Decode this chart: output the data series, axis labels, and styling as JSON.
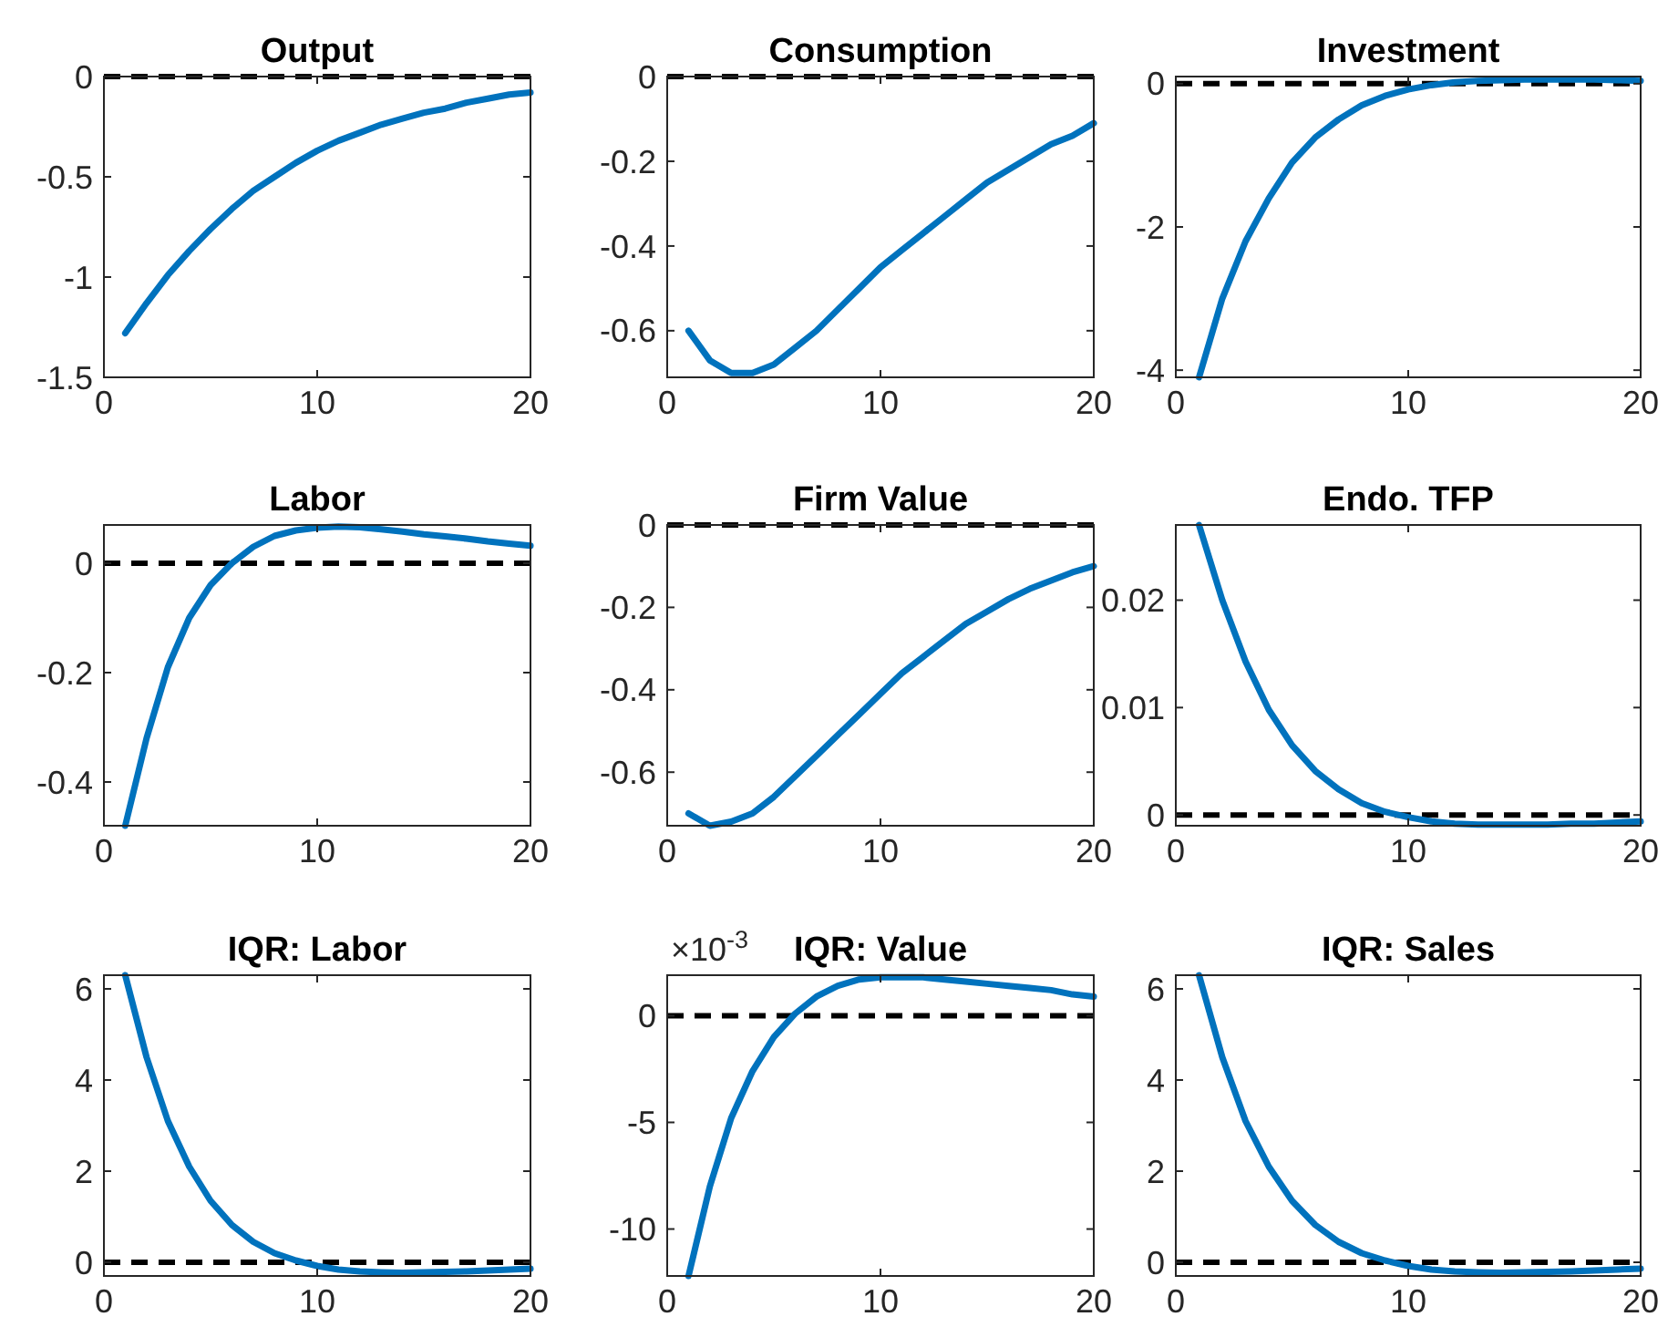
{
  "chart_data": [
    {
      "type": "line",
      "title": "Output",
      "x": [
        1,
        2,
        3,
        4,
        5,
        6,
        7,
        8,
        9,
        10,
        11,
        12,
        13,
        14,
        15,
        16,
        17,
        18,
        19,
        20
      ],
      "xlim": [
        0,
        20
      ],
      "xticks": [
        0,
        10,
        20
      ],
      "ylim": [
        -1.5,
        0
      ],
      "yticks": [
        -1.5,
        -1,
        -0.5,
        0
      ],
      "series": [
        {
          "color": "#0072bd",
          "values": [
            -1.28,
            -1.13,
            -0.99,
            -0.87,
            -0.76,
            -0.66,
            -0.57,
            -0.5,
            -0.43,
            -0.37,
            -0.32,
            -0.28,
            -0.24,
            -0.21,
            -0.18,
            -0.16,
            -0.13,
            -0.11,
            -0.09,
            -0.08
          ]
        }
      ],
      "ref_lines": [
        {
          "axis": "y",
          "value": 0,
          "color": "#000000",
          "line_style": "dashed"
        }
      ]
    },
    {
      "type": "line",
      "title": "Consumption",
      "x": [
        1,
        2,
        3,
        4,
        5,
        6,
        7,
        8,
        9,
        10,
        11,
        12,
        13,
        14,
        15,
        16,
        17,
        18,
        19,
        20
      ],
      "xlim": [
        0,
        20
      ],
      "xticks": [
        0,
        10,
        20
      ],
      "ylim": [
        -0.71,
        0
      ],
      "yticks": [
        -0.6,
        -0.4,
        -0.2,
        0
      ],
      "series": [
        {
          "color": "#0072bd",
          "values": [
            -0.6,
            -0.67,
            -0.7,
            -0.7,
            -0.68,
            -0.64,
            -0.6,
            -0.55,
            -0.5,
            -0.45,
            -0.41,
            -0.37,
            -0.33,
            -0.29,
            -0.25,
            -0.22,
            -0.19,
            -0.16,
            -0.14,
            -0.11
          ]
        }
      ],
      "ref_lines": [
        {
          "axis": "y",
          "value": 0,
          "color": "#000000",
          "line_style": "dashed"
        }
      ]
    },
    {
      "type": "line",
      "title": "Investment",
      "x": [
        1,
        2,
        3,
        4,
        5,
        6,
        7,
        8,
        9,
        10,
        11,
        12,
        13,
        14,
        15,
        16,
        17,
        18,
        19,
        20
      ],
      "xlim": [
        0,
        20
      ],
      "xticks": [
        0,
        10,
        20
      ],
      "ylim": [
        -4.1,
        0.1
      ],
      "yticks": [
        -4,
        -2,
        0
      ],
      "series": [
        {
          "color": "#0072bd",
          "values": [
            -4.1,
            -3.0,
            -2.2,
            -1.6,
            -1.1,
            -0.75,
            -0.5,
            -0.3,
            -0.17,
            -0.08,
            -0.02,
            0.02,
            0.04,
            0.05,
            0.06,
            0.06,
            0.06,
            0.06,
            0.05,
            0.04
          ]
        }
      ],
      "ref_lines": [
        {
          "axis": "y",
          "value": 0,
          "color": "#000000",
          "line_style": "dashed"
        }
      ]
    },
    {
      "type": "line",
      "title": "Labor",
      "x": [
        1,
        2,
        3,
        4,
        5,
        6,
        7,
        8,
        9,
        10,
        11,
        12,
        13,
        14,
        15,
        16,
        17,
        18,
        19,
        20
      ],
      "xlim": [
        0,
        20
      ],
      "xticks": [
        0,
        10,
        20
      ],
      "ylim": [
        -0.48,
        0.07
      ],
      "yticks": [
        -0.4,
        -0.2,
        0
      ],
      "series": [
        {
          "color": "#0072bd",
          "values": [
            -0.48,
            -0.32,
            -0.19,
            -0.1,
            -0.04,
            0.0,
            0.03,
            0.05,
            0.06,
            0.065,
            0.067,
            0.066,
            0.062,
            0.058,
            0.053,
            0.049,
            0.045,
            0.04,
            0.036,
            0.032
          ]
        }
      ],
      "ref_lines": [
        {
          "axis": "y",
          "value": 0,
          "color": "#000000",
          "line_style": "dashed"
        }
      ]
    },
    {
      "type": "line",
      "title": "Firm Value",
      "x": [
        1,
        2,
        3,
        4,
        5,
        6,
        7,
        8,
        9,
        10,
        11,
        12,
        13,
        14,
        15,
        16,
        17,
        18,
        19,
        20
      ],
      "xlim": [
        0,
        20
      ],
      "xticks": [
        0,
        10,
        20
      ],
      "ylim": [
        -0.73,
        0
      ],
      "yticks": [
        -0.6,
        -0.4,
        -0.2,
        0
      ],
      "series": [
        {
          "color": "#0072bd",
          "values": [
            -0.7,
            -0.73,
            -0.72,
            -0.7,
            -0.66,
            -0.61,
            -0.56,
            -0.51,
            -0.46,
            -0.41,
            -0.36,
            -0.32,
            -0.28,
            -0.24,
            -0.21,
            -0.18,
            -0.155,
            -0.135,
            -0.115,
            -0.1
          ]
        }
      ],
      "ref_lines": [
        {
          "axis": "y",
          "value": 0,
          "color": "#000000",
          "line_style": "dashed"
        }
      ]
    },
    {
      "type": "line",
      "title": "Endo. TFP",
      "x": [
        1,
        2,
        3,
        4,
        5,
        6,
        7,
        8,
        9,
        10,
        11,
        12,
        13,
        14,
        15,
        16,
        17,
        18,
        19,
        20
      ],
      "xlim": [
        0,
        20
      ],
      "xticks": [
        0,
        10,
        20
      ],
      "ylim": [
        -0.001,
        0.027
      ],
      "yticks": [
        0,
        0.01,
        0.02
      ],
      "series": [
        {
          "color": "#0072bd",
          "values": [
            0.027,
            0.02,
            0.0143,
            0.0098,
            0.0065,
            0.0041,
            0.0024,
            0.0011,
            0.0003,
            -0.0002,
            -0.0006,
            -0.0008,
            -0.0009,
            -0.0009,
            -0.0009,
            -0.0009,
            -0.0008,
            -0.0008,
            -0.0007,
            -0.0006
          ]
        }
      ],
      "ref_lines": [
        {
          "axis": "y",
          "value": 0,
          "color": "#000000",
          "line_style": "dashed"
        }
      ]
    },
    {
      "type": "line",
      "title": "IQR: Labor",
      "x": [
        1,
        2,
        3,
        4,
        5,
        6,
        7,
        8,
        9,
        10,
        11,
        12,
        13,
        14,
        15,
        16,
        17,
        18,
        19,
        20
      ],
      "xlim": [
        0,
        20
      ],
      "xticks": [
        0,
        10,
        20
      ],
      "ylim": [
        -0.3,
        6.3
      ],
      "yticks": [
        0,
        2,
        4,
        6
      ],
      "series": [
        {
          "color": "#0072bd",
          "values": [
            6.3,
            4.5,
            3.1,
            2.1,
            1.35,
            0.82,
            0.45,
            0.2,
            0.04,
            -0.08,
            -0.16,
            -0.2,
            -0.22,
            -0.23,
            -0.22,
            -0.21,
            -0.2,
            -0.18,
            -0.16,
            -0.14
          ]
        }
      ],
      "ref_lines": [
        {
          "axis": "y",
          "value": 0,
          "color": "#000000",
          "line_style": "dashed"
        }
      ]
    },
    {
      "type": "line",
      "title": "IQR: Value",
      "x": [
        1,
        2,
        3,
        4,
        5,
        6,
        7,
        8,
        9,
        10,
        11,
        12,
        13,
        14,
        15,
        16,
        17,
        18,
        19,
        20
      ],
      "xlim": [
        0,
        20
      ],
      "xticks": [
        0,
        10,
        20
      ],
      "ylim": [
        -12.2,
        1.9
      ],
      "yticks": [
        -10,
        -5,
        0
      ],
      "series": [
        {
          "color": "#0072bd",
          "values": [
            -12.2,
            -8,
            -4.8,
            -2.6,
            -1,
            0.1,
            0.9,
            1.4,
            1.7,
            1.8,
            1.8,
            1.8,
            1.7,
            1.6,
            1.5,
            1.4,
            1.3,
            1.2,
            1,
            0.9
          ]
        }
      ],
      "ref_lines": [
        {
          "axis": "y",
          "value": 0,
          "color": "#000000",
          "line_style": "dashed"
        }
      ],
      "annotations": [
        "×10$^{-3}$"
      ]
    },
    {
      "type": "line",
      "title": "IQR: Sales",
      "x": [
        1,
        2,
        3,
        4,
        5,
        6,
        7,
        8,
        9,
        10,
        11,
        12,
        13,
        14,
        15,
        16,
        17,
        18,
        19,
        20
      ],
      "xlim": [
        0,
        20
      ],
      "xticks": [
        0,
        10,
        20
      ],
      "ylim": [
        -0.3,
        6.3
      ],
      "yticks": [
        0,
        2,
        4,
        6
      ],
      "series": [
        {
          "color": "#0072bd",
          "values": [
            6.3,
            4.5,
            3.1,
            2.1,
            1.35,
            0.82,
            0.45,
            0.2,
            0.04,
            -0.08,
            -0.16,
            -0.2,
            -0.22,
            -0.23,
            -0.22,
            -0.21,
            -0.2,
            -0.18,
            -0.16,
            -0.14
          ]
        }
      ],
      "ref_lines": [
        {
          "axis": "y",
          "value": 0,
          "color": "#000000",
          "line_style": "dashed"
        }
      ]
    }
  ]
}
